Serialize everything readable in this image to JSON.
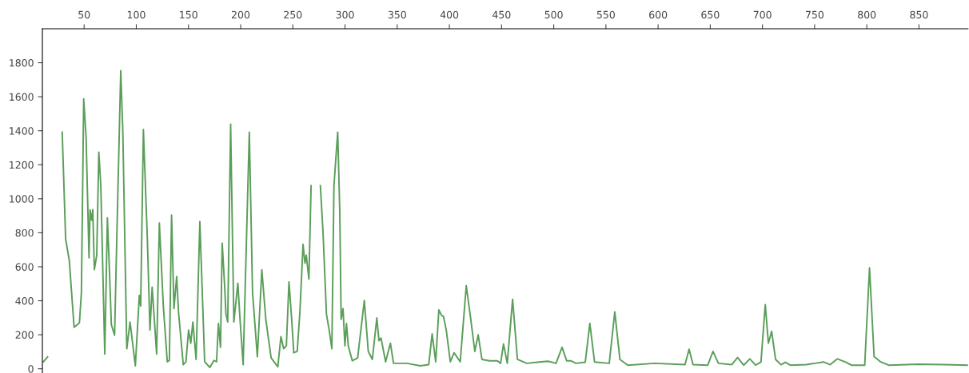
{
  "chart_data": {
    "type": "line",
    "x": [
      11,
      15,
      20,
      26.4,
      29,
      32.3,
      35.8,
      40.4,
      45.5,
      47.4,
      49.6,
      51.9,
      54.7,
      55.7,
      57.3,
      58.3,
      59.8,
      62.1,
      64.1,
      66,
      69.8,
      72.3,
      74.1,
      76.1,
      79.2,
      81.3,
      85.1,
      87.1,
      90.9,
      94,
      99.1,
      102.9,
      104.2,
      106.8,
      110.6,
      113.1,
      115.2,
      119.5,
      122.1,
      125.9,
      129.7,
      131.7,
      133.8,
      136.1,
      138.7,
      140.4,
      145,
      147.6,
      150.1,
      152.2,
      154.2,
      157.3,
      160.9,
      165.5,
      170.5,
      174.4,
      176.9,
      178.7,
      180.7,
      182.3,
      184.6,
      185.9,
      187.6,
      190.4,
      193.5,
      197.3,
      199.4,
      202.4,
      208.3,
      211.4,
      216,
      220.3,
      224.1,
      229.2,
      235.6,
      238.6,
      241.2,
      243.8,
      246.3,
      248.9,
      250.9,
      254.2,
      256.8,
      259.8,
      261.6,
      262.9,
      265.4,
      267.5,
      269.2,
      274.4,
      276.4,
      279,
      282.2,
      284.8,
      287.4,
      289.4,
      293,
      295,
      296.3,
      298.1,
      299.9,
      301.4,
      303.1,
      307,
      312.1,
      318.5,
      322.3,
      326.2,
      330.5,
      332.5,
      334.5,
      338.9,
      343.5,
      346.5,
      359.3,
      372.1,
      380.2,
      383.5,
      386.9,
      389.9,
      392.4,
      394.4,
      397,
      400.9,
      404.5,
      410.4,
      416.2,
      420.5,
      424.4,
      427.6,
      431.2,
      438.4,
      446,
      449.1,
      451.9,
      455.5,
      460.6,
      465.2,
      474.1,
      484.3,
      494.5,
      502.2,
      508,
      512.4,
      516.2,
      521.3,
      530.2,
      534.6,
      539.1,
      553.2,
      558.5,
      563.4,
      571,
      596.5,
      625.8,
      629.7,
      633.5,
      647.6,
      652.6,
      657.8,
      670.5,
      676.2,
      682,
      687.9,
      693.5,
      698.6,
      702.7,
      705.7,
      708.8,
      712.6,
      717.7,
      722,
      726.7,
      742,
      758.6,
      764.9,
      771.8,
      780.2,
      785.3,
      798,
      802.6,
      807,
      813.4,
      821,
      849.1,
      874.6,
      896.4
    ],
    "series": [
      {
        "color": "#5a9e5a",
        "values": [
          41,
          70,
          null,
          null,
          1392,
          763,
          637,
          244,
          270,
          448,
          1588,
          1361,
          653,
          935,
          873,
          936,
          583,
          668,
          1274,
          1077,
          87,
          888,
          605,
          259,
          197,
          763,
          1753,
          1392,
          118,
          275,
          17,
          432,
          369,
          1407,
          763,
          228,
          480,
          87,
          857,
          369,
          41,
          49,
          904,
          354,
          543,
          338,
          24,
          41,
          228,
          150,
          275,
          55,
          865,
          41,
          8,
          49,
          41,
          267,
          126,
          739,
          495,
          322,
          275,
          1439,
          275,
          503,
          291,
          24,
          1392,
          448,
          71,
          582,
          291,
          64,
          12,
          189,
          118,
          135,
          511,
          291,
          94,
          102,
          338,
          731,
          621,
          668,
          527,
          1077,
          null,
          null,
          1077,
          794,
          322,
          228,
          118,
          1077,
          1392,
          920,
          291,
          354,
          135,
          267,
          135,
          47,
          64,
          401,
          102,
          55,
          299,
          165,
          181,
          41,
          150,
          32,
          32,
          17,
          24,
          205,
          41,
          346,
          315,
          307,
          228,
          41,
          94,
          41,
          488,
          291,
          102,
          200,
          55,
          47,
          47,
          32,
          146,
          32,
          409,
          55,
          32,
          38,
          44,
          32,
          126,
          47,
          47,
          32,
          38,
          267,
          40,
          32,
          335,
          55,
          21,
          32,
          24,
          115,
          24,
          21,
          102,
          32,
          24,
          66,
          21,
          58,
          21,
          40,
          377,
          150,
          220,
          55,
          24,
          38,
          21,
          24,
          40,
          24,
          58,
          38,
          21,
          21,
          593,
          71,
          40,
          21,
          27,
          24,
          21
        ]
      }
    ],
    "xlim": [
      10,
      897
    ],
    "ylim": [
      -25,
      2000
    ],
    "xticks": [
      50,
      100,
      150,
      200,
      250,
      300,
      350,
      400,
      450,
      500,
      550,
      600,
      650,
      700,
      750,
      800,
      850
    ],
    "yticks": [
      0,
      200,
      400,
      600,
      800,
      1000,
      1200,
      1400,
      1600,
      1800
    ],
    "marker": "none",
    "line_style": "solid"
  }
}
